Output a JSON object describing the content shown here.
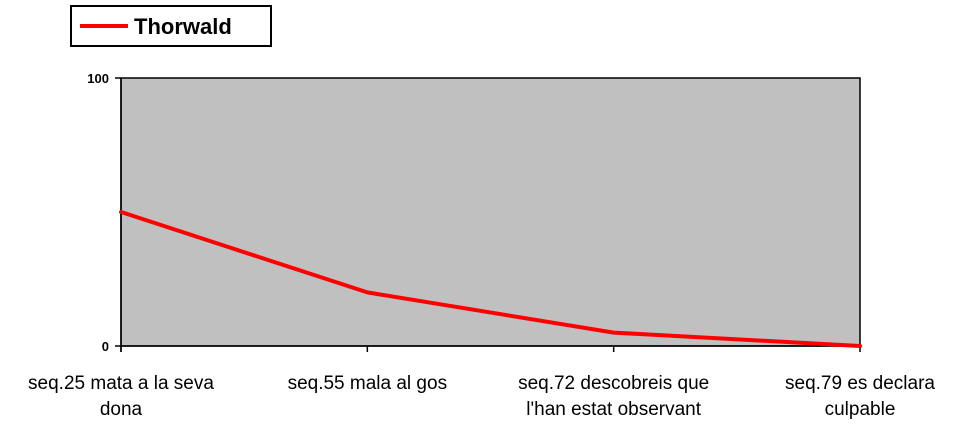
{
  "chart_data": {
    "type": "line",
    "categories": [
      [
        "seq.25 mata a la seva",
        "dona"
      ],
      [
        "seq.55 mala al gos"
      ],
      [
        "seq.72 descobreis que",
        "l'han estat observant"
      ],
      [
        "seq.79 es declara",
        "culpable"
      ]
    ],
    "series": [
      {
        "name": "Thorwald",
        "values": [
          50,
          20,
          5,
          0
        ],
        "color": "#ff0000"
      }
    ],
    "ylim": [
      0,
      100
    ],
    "yticks": [
      0,
      100
    ],
    "grid": false,
    "legend": "top-left",
    "plot_background": "#c0c0c0",
    "axis_color": "#000000"
  }
}
